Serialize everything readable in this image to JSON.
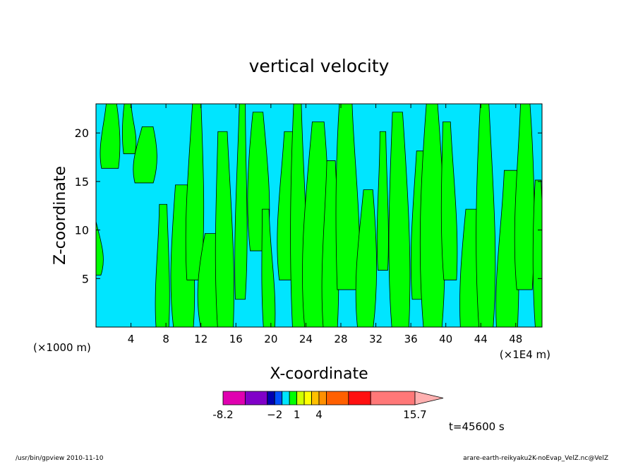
{
  "chart_data": {
    "type": "heatmap",
    "title": "vertical velocity",
    "xlabel": "X-coordinate",
    "ylabel": "Z-coordinate",
    "x_unit_left": "(×1000 m)",
    "x_unit_right": "(×1E4 m)",
    "xlim": [
      0,
      51
    ],
    "ylim": [
      0,
      23
    ],
    "x_ticks": [
      4,
      8,
      12,
      16,
      20,
      24,
      28,
      32,
      36,
      40,
      44,
      48
    ],
    "x_tick_labels": [
      "4",
      "8",
      "12",
      "16",
      "20",
      "24",
      "28",
      "32",
      "36",
      "40",
      "44",
      "48"
    ],
    "y_ticks": [
      5,
      10,
      15,
      20
    ],
    "y_tick_labels": [
      "5",
      "10",
      "15",
      "20"
    ],
    "contour_colors": {
      "negative": "#00e5ff",
      "positive": "#00ff00"
    },
    "positive_regions": [
      [
        0.0,
        5.5,
        11.0
      ],
      [
        1.6,
        16.5,
        23.0
      ],
      [
        3.8,
        18.0,
        23.0
      ],
      [
        5.5,
        15.0,
        20.5
      ],
      [
        7.6,
        0.0,
        12.5
      ],
      [
        10.0,
        0.0,
        14.5
      ],
      [
        11.2,
        5.0,
        23.0
      ],
      [
        13.2,
        0.0,
        9.5
      ],
      [
        14.8,
        0.0,
        20.0
      ],
      [
        16.5,
        3.0,
        23.0
      ],
      [
        18.6,
        8.0,
        22.0
      ],
      [
        19.8,
        0.0,
        12.0
      ],
      [
        22.0,
        5.0,
        20.0
      ],
      [
        23.2,
        0.0,
        23.0
      ],
      [
        25.0,
        0.0,
        21.0
      ],
      [
        26.8,
        0.0,
        17.0
      ],
      [
        28.8,
        4.0,
        23.0
      ],
      [
        30.8,
        0.0,
        14.0
      ],
      [
        32.8,
        6.0,
        20.0
      ],
      [
        34.8,
        0.0,
        22.0
      ],
      [
        36.8,
        3.0,
        18.0
      ],
      [
        38.5,
        0.0,
        23.0
      ],
      [
        40.5,
        5.0,
        21.0
      ],
      [
        42.8,
        0.0,
        12.0
      ],
      [
        44.6,
        0.0,
        23.0
      ],
      [
        47.0,
        0.0,
        16.0
      ],
      [
        49.0,
        4.0,
        23.0
      ],
      [
        50.8,
        0.0,
        15.0
      ]
    ],
    "colorbar": {
      "colors": [
        "#e000b0",
        "#8000c8",
        "#0000b0",
        "#0050ff",
        "#00e5ff",
        "#00ff00",
        "#d0ff00",
        "#ffff00",
        "#ffc000",
        "#ff9000",
        "#ff6000",
        "#ff1010",
        "#ff7878"
      ],
      "widths": [
        1.5,
        1.5,
        0.5,
        0.5,
        0.5,
        0.5,
        0.5,
        0.5,
        0.5,
        0.5,
        1.5,
        1.5,
        3.0
      ],
      "extend_color": "#ffb0b0",
      "labels": [
        "-8.2",
        "−2",
        "1",
        "4",
        "15.7"
      ],
      "label_edge_index": [
        0,
        3,
        6,
        9,
        13
      ]
    },
    "time_label": "t=45600 s"
  },
  "footer": {
    "left": "/usr/bin/gpview  2010-11-10",
    "right": "arare-earth-reikyaku2K-noEvap_VelZ.nc@VelZ"
  }
}
